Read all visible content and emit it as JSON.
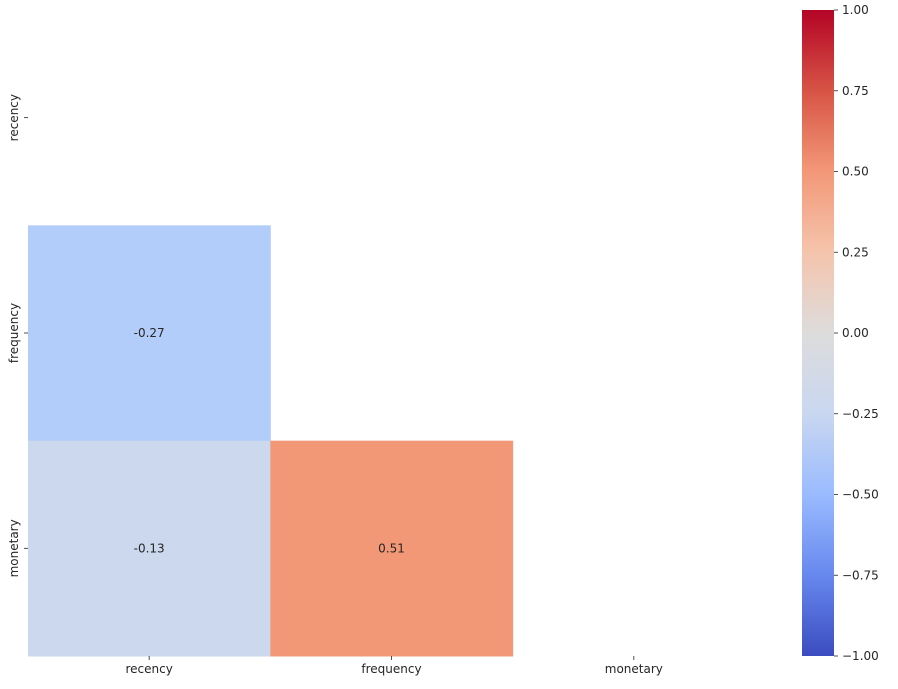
{
  "chart_data": {
    "type": "heatmap",
    "title": "",
    "xlabel": "",
    "ylabel": "",
    "rows": [
      "recency",
      "frequency",
      "monetary"
    ],
    "columns": [
      "recency",
      "frequency",
      "monetary"
    ],
    "mask": "upper-triangle-including-diagonal",
    "cells": [
      {
        "row": 1,
        "col": 0,
        "value": -0.27,
        "label": "-0.27",
        "color": "#b3cdfb"
      },
      {
        "row": 2,
        "col": 0,
        "value": -0.13,
        "label": "-0.13",
        "color": "#cbd8ee"
      },
      {
        "row": 2,
        "col": 1,
        "value": 0.51,
        "label": "0.51",
        "color": "#f39877"
      }
    ],
    "colorbar": {
      "colormap": "coolwarm",
      "vmin": -1.0,
      "vmax": 1.0,
      "ticks": [
        1.0,
        0.75,
        0.5,
        0.25,
        0.0,
        -0.25,
        -0.5,
        -0.75,
        -1.0
      ],
      "tick_labels": [
        "1.00",
        "0.75",
        "0.50",
        "0.25",
        "0.00",
        "−0.25",
        "−0.50",
        "−0.75",
        "−1.00"
      ],
      "stops": [
        "#3b4cc0",
        "#6788ee",
        "#9abbff",
        "#c9d7f0",
        "#dddcdc",
        "#f5c4ac",
        "#f39878",
        "#d75445",
        "#b40426"
      ]
    }
  }
}
